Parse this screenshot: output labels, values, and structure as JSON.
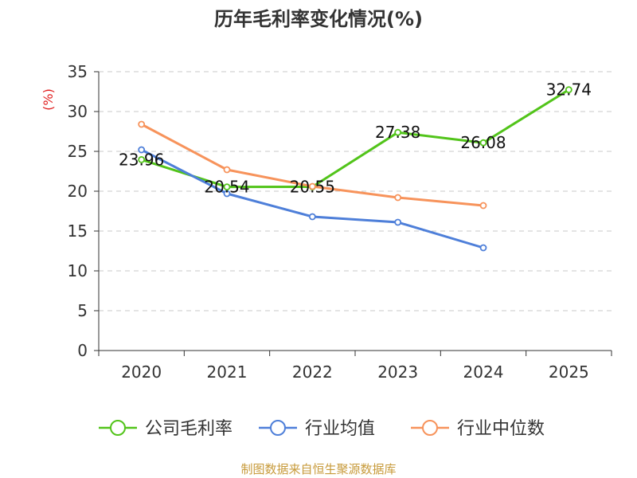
{
  "chart_data": {
    "type": "line",
    "title": "历年毛利率变化情况(%)",
    "ylabel": "(%)",
    "xlabel": "",
    "categories": [
      "2020",
      "2021",
      "2022",
      "2023",
      "2024",
      "2025"
    ],
    "ylim": [
      0,
      35
    ],
    "yticks": [
      0,
      5,
      10,
      15,
      20,
      25,
      30,
      35
    ],
    "grid": true,
    "legend_position": "bottom",
    "series": [
      {
        "name": "公司毛利率",
        "color": "#52c41a",
        "values": [
          23.96,
          20.54,
          20.55,
          27.38,
          26.08,
          32.74
        ],
        "labels": [
          "23.96",
          "20.54",
          "20.55",
          "27.38",
          "26.08",
          "32.74"
        ]
      },
      {
        "name": "行业均值",
        "color": "#4e7fd9",
        "values": [
          25.2,
          19.7,
          16.8,
          16.1,
          12.9,
          null
        ],
        "labels": []
      },
      {
        "name": "行业中位数",
        "color": "#f7935b",
        "values": [
          28.4,
          22.7,
          20.6,
          19.2,
          18.2,
          null
        ],
        "labels": []
      }
    ],
    "source": "制图数据来自恒生聚源数据库"
  }
}
